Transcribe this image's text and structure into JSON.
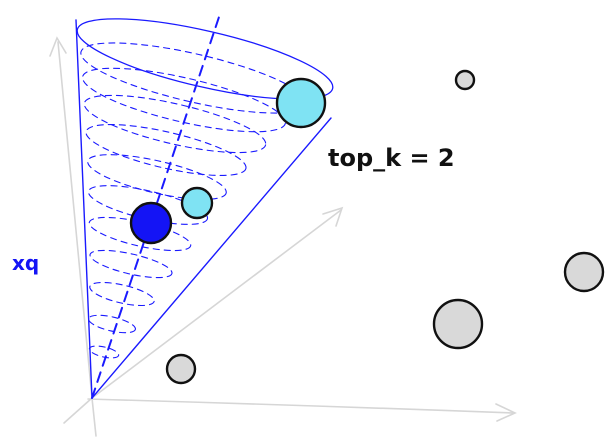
{
  "labels": {
    "top_k": "top_k = 2",
    "query_vector": "xq"
  },
  "colors": {
    "background": "#ffffff",
    "axis": "#d6d6d6",
    "cone": "#1a1aff",
    "query_point": "#1414f5",
    "match_point": "#7fe3f3",
    "other_point": "#d9d9d9",
    "outline": "#111111"
  }
}
